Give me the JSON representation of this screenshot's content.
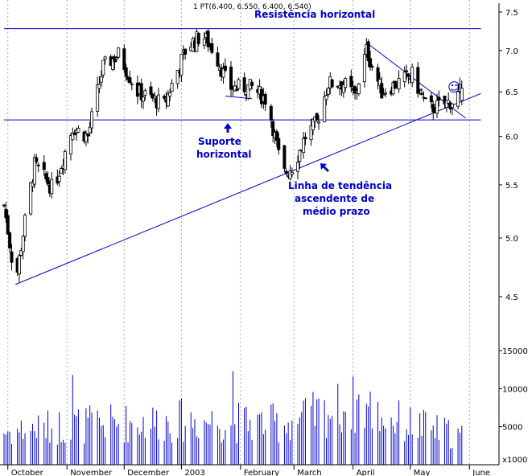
{
  "chart_data": {
    "type": "candlestick",
    "header": "1 PT(6.400, 6.550, 6.400, 6.540)",
    "price_axis": {
      "ticks": [
        {
          "value": 4.5,
          "label": "4.5"
        },
        {
          "value": 5.0,
          "label": "5.0"
        },
        {
          "value": 5.5,
          "label": "5.5"
        },
        {
          "value": 6.0,
          "label": "6.0"
        },
        {
          "value": 6.5,
          "label": "6.5"
        },
        {
          "value": 7.0,
          "label": "7.0"
        },
        {
          "value": 7.5,
          "label": "7.5"
        }
      ],
      "log_scale": true
    },
    "volume_axis": {
      "ticks": [
        {
          "value": 5000,
          "label": "5000"
        },
        {
          "value": 10000,
          "label": "10000"
        },
        {
          "value": 15000,
          "label": "15000"
        }
      ],
      "multiplier_label": "x1000"
    },
    "month_labels": [
      {
        "day": 2,
        "label": "October"
      },
      {
        "day": 33,
        "label": "November"
      },
      {
        "day": 63,
        "label": "December"
      },
      {
        "day": 93,
        "label": "2003"
      },
      {
        "day": 124,
        "label": "February"
      },
      {
        "day": 152,
        "label": "March"
      },
      {
        "day": 183,
        "label": "April"
      },
      {
        "day": 213,
        "label": "May"
      },
      {
        "day": 244,
        "label": "June"
      }
    ],
    "price_waypoints": [
      {
        "day": 0,
        "close": 5.3
      },
      {
        "day": 6,
        "close": 4.6
      },
      {
        "day": 16,
        "close": 5.7
      },
      {
        "day": 26,
        "close": 5.45
      },
      {
        "day": 36,
        "close": 6.1
      },
      {
        "day": 44,
        "close": 6.0
      },
      {
        "day": 52,
        "close": 6.8
      },
      {
        "day": 60,
        "close": 6.95
      },
      {
        "day": 70,
        "close": 6.5
      },
      {
        "day": 84,
        "close": 6.35
      },
      {
        "day": 96,
        "close": 7.05
      },
      {
        "day": 104,
        "close": 7.2
      },
      {
        "day": 110,
        "close": 7.0
      },
      {
        "day": 118,
        "close": 6.55
      },
      {
        "day": 130,
        "close": 6.55
      },
      {
        "day": 138,
        "close": 6.4
      },
      {
        "day": 146,
        "close": 5.6
      },
      {
        "day": 152,
        "close": 5.7
      },
      {
        "day": 158,
        "close": 6.0
      },
      {
        "day": 164,
        "close": 6.15
      },
      {
        "day": 170,
        "close": 6.6
      },
      {
        "day": 178,
        "close": 6.6
      },
      {
        "day": 184,
        "close": 6.45
      },
      {
        "day": 190,
        "close": 7.0
      },
      {
        "day": 198,
        "close": 6.5
      },
      {
        "day": 206,
        "close": 6.6
      },
      {
        "day": 214,
        "close": 6.7
      },
      {
        "day": 222,
        "close": 6.3
      },
      {
        "day": 230,
        "close": 6.35
      },
      {
        "day": 236,
        "close": 6.4
      },
      {
        "day": 240,
        "close": 6.54
      }
    ],
    "volume_waypoints": [
      {
        "day": 0,
        "volume": 4800
      },
      {
        "day": 36,
        "volume": 5800
      },
      {
        "day": 96,
        "volume": 6500
      },
      {
        "day": 146,
        "volume": 6000
      },
      {
        "day": 186,
        "volume": 9000
      },
      {
        "day": 200,
        "volume": 6800
      },
      {
        "day": 240,
        "volume": 4200
      }
    ],
    "volume_spikes": [
      {
        "day": 36,
        "volume": 11800
      },
      {
        "day": 90,
        "volume": 10200
      },
      {
        "day": 120,
        "volume": 12300
      },
      {
        "day": 187,
        "volume": 15200
      },
      {
        "day": 222,
        "volume": 9800
      }
    ],
    "lines": [
      {
        "name": "resistance",
        "from": {
          "day": 0,
          "price": 7.28
        },
        "to": {
          "day": 250,
          "price": 7.28
        }
      },
      {
        "name": "support",
        "from": {
          "day": 0,
          "price": 6.18
        },
        "to": {
          "day": 250,
          "price": 6.18
        }
      },
      {
        "name": "uptrend",
        "from": {
          "day": 6,
          "price": 4.6
        },
        "to": {
          "day": 250,
          "price": 6.48
        }
      },
      {
        "name": "downtrend",
        "from": {
          "day": 190,
          "price": 7.1
        },
        "to": {
          "day": 242,
          "price": 6.2
        }
      },
      {
        "name": "support-short",
        "from": {
          "day": 116,
          "price": 6.45
        },
        "to": {
          "day": 130,
          "price": 6.42
        }
      }
    ],
    "annotations": {
      "resistance": "Resistência horizontal",
      "support_line1": "Suporte",
      "support_line2": "horizontal",
      "trend_line1": "Linha de tendência",
      "trend_line2": "ascendente de",
      "trend_line3": "médio prazo",
      "smiley": "☺"
    },
    "colors": {
      "candle": "#000000",
      "line": "#0000cc",
      "volume": "#0000cc",
      "grid": "#aaaaaa"
    },
    "grid": true
  }
}
